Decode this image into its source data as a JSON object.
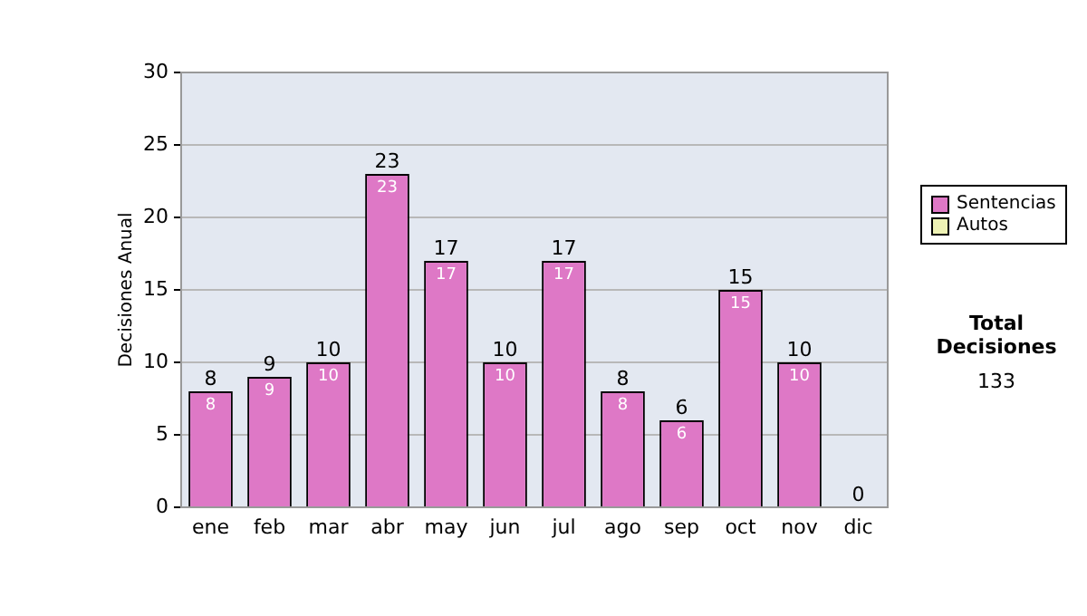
{
  "chart_data": {
    "type": "bar",
    "stacked": true,
    "ylabel": "Decisiones Anual",
    "categories": [
      "ene",
      "feb",
      "mar",
      "abr",
      "may",
      "jun",
      "jul",
      "ago",
      "sep",
      "oct",
      "nov",
      "dic"
    ],
    "series": [
      {
        "name": "Sentencias",
        "color": "#de78c6",
        "values": [
          8,
          9,
          10,
          23,
          17,
          10,
          17,
          8,
          6,
          15,
          10,
          0
        ],
        "value_labels": [
          "8",
          "9",
          "10",
          "23",
          "17",
          "10",
          "17",
          "8",
          "6",
          "15",
          "10",
          null
        ]
      },
      {
        "name": "Autos",
        "color": "#eef2b4",
        "values": [
          0,
          0,
          0,
          0,
          0,
          0,
          0,
          0,
          0,
          0,
          0,
          0
        ]
      }
    ],
    "totals": [
      "8",
      "9",
      "10",
      "23",
      "17",
      "10",
      "17",
      "8",
      "6",
      "15",
      "10",
      "0"
    ],
    "ylim": [
      0,
      30
    ],
    "yticks": [
      0,
      5,
      10,
      15,
      20,
      25,
      30
    ],
    "grid": "y",
    "legend": "right",
    "annotations": [
      "Total Decisiones",
      "133"
    ]
  }
}
